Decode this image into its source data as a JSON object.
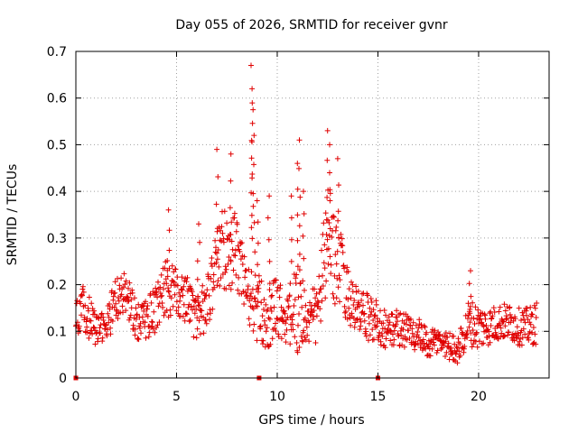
{
  "chart_data": {
    "type": "scatter",
    "title": "Day 055 of 2026, SRMTID for receiver gvnr",
    "xlabel": "GPS time / hours",
    "ylabel": "SRMTID / TECUs",
    "xlim": [
      0,
      23.5
    ],
    "ylim": [
      0,
      0.7
    ],
    "x_ticks": [
      0,
      5,
      10,
      15,
      20
    ],
    "y_ticks": [
      0,
      0.1,
      0.2,
      0.3,
      0.4,
      0.5,
      0.6,
      0.7
    ],
    "x_tick_labels": [
      "0",
      "5",
      "10",
      "15",
      "20"
    ],
    "y_tick_labels": [
      "0",
      "0.1",
      "0.2",
      "0.3",
      "0.4",
      "0.5",
      "0.6",
      "0.7"
    ],
    "grid": true,
    "marker": "+",
    "color": "#e00000",
    "zero_markers_x": [
      0,
      9.1,
      15.0
    ],
    "envelope": {
      "hours": [
        0,
        0.5,
        1,
        1.5,
        2,
        2.5,
        3,
        3.5,
        4,
        4.5,
        5,
        5.5,
        6,
        6.5,
        7,
        7.5,
        8,
        8.5,
        9,
        9.5,
        10,
        10.5,
        11,
        11.5,
        12,
        12.5,
        13,
        13.5,
        14,
        14.5,
        15,
        15.5,
        16,
        16.5,
        17,
        17.5,
        18,
        18.5,
        19,
        19.5,
        20,
        20.5,
        21,
        21.5,
        22,
        22.5,
        23
      ],
      "median": [
        0.13,
        0.15,
        0.1,
        0.11,
        0.17,
        0.18,
        0.12,
        0.13,
        0.15,
        0.2,
        0.18,
        0.17,
        0.12,
        0.16,
        0.26,
        0.28,
        0.27,
        0.18,
        0.15,
        0.12,
        0.16,
        0.12,
        0.15,
        0.12,
        0.14,
        0.3,
        0.25,
        0.18,
        0.14,
        0.13,
        0.12,
        0.1,
        0.11,
        0.1,
        0.09,
        0.07,
        0.08,
        0.07,
        0.06,
        0.12,
        0.11,
        0.11,
        0.12,
        0.12,
        0.11,
        0.11,
        0.12
      ],
      "spread": [
        0.04,
        0.06,
        0.03,
        0.04,
        0.05,
        0.05,
        0.04,
        0.05,
        0.05,
        0.07,
        0.05,
        0.05,
        0.05,
        0.06,
        0.09,
        0.09,
        0.08,
        0.06,
        0.08,
        0.06,
        0.07,
        0.05,
        0.1,
        0.06,
        0.07,
        0.12,
        0.1,
        0.06,
        0.05,
        0.05,
        0.05,
        0.04,
        0.04,
        0.04,
        0.04,
        0.03,
        0.03,
        0.03,
        0.03,
        0.05,
        0.05,
        0.04,
        0.04,
        0.04,
        0.04,
        0.04,
        0.05
      ]
    },
    "peaks": [
      {
        "x": 4.6,
        "y": 0.36
      },
      {
        "x": 6.1,
        "y": 0.33
      },
      {
        "x": 7.0,
        "y": 0.49
      },
      {
        "x": 7.7,
        "y": 0.48
      },
      {
        "x": 8.7,
        "y": 0.67
      },
      {
        "x": 8.75,
        "y": 0.62
      },
      {
        "x": 8.8,
        "y": 0.575
      },
      {
        "x": 8.85,
        "y": 0.52
      },
      {
        "x": 9.0,
        "y": 0.38
      },
      {
        "x": 9.6,
        "y": 0.39
      },
      {
        "x": 10.7,
        "y": 0.39
      },
      {
        "x": 11.0,
        "y": 0.46
      },
      {
        "x": 11.1,
        "y": 0.51
      },
      {
        "x": 11.3,
        "y": 0.4
      },
      {
        "x": 12.5,
        "y": 0.53
      },
      {
        "x": 12.6,
        "y": 0.5
      },
      {
        "x": 13.0,
        "y": 0.47
      },
      {
        "x": 19.6,
        "y": 0.23
      }
    ],
    "point_count": 1100
  }
}
